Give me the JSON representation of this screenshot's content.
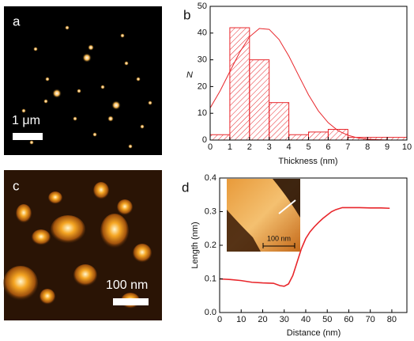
{
  "chart_data": [
    {
      "type": "histogram",
      "panel_label": "b",
      "x_label": "Thickness (nm)",
      "y_label": "N",
      "bins": [
        0,
        1,
        2,
        3,
        4,
        5,
        6,
        7,
        8,
        9,
        10
      ],
      "values": [
        2,
        42,
        30,
        14,
        2,
        3,
        4,
        1,
        1,
        1
      ],
      "color": "#e8262b",
      "fit": {
        "x": [
          0,
          0.5,
          1,
          1.5,
          2,
          2.5,
          3,
          3.5,
          4,
          4.5,
          5,
          5.5,
          6,
          6.5,
          7,
          7.5,
          8,
          9,
          10
        ],
        "values": [
          12.0,
          18.3,
          25.6,
          32.8,
          38.6,
          41.7,
          41.4,
          37.6,
          31.4,
          24.1,
          16.9,
          10.9,
          6.5,
          3.5,
          1.8,
          0.8,
          0.3,
          0.0,
          0.0
        ]
      },
      "xlim": [
        0,
        10
      ],
      "xticks": [
        0,
        1,
        2,
        3,
        4,
        5,
        6,
        7,
        8,
        9,
        10
      ],
      "ylim": [
        0,
        50
      ],
      "yticks": [
        0,
        10,
        20,
        30,
        40,
        50
      ]
    },
    {
      "type": "line",
      "panel_label": "d",
      "x_label": "Distance (nm)",
      "y_label": "Length (nm)",
      "inset_scale_bar": "100 nm",
      "x": [
        0,
        5,
        10,
        15,
        20,
        25,
        28,
        30,
        32,
        34,
        36,
        38,
        40,
        42,
        44,
        46,
        48,
        50,
        52,
        54,
        57,
        60,
        65,
        70,
        75,
        79
      ],
      "values": [
        0.1,
        0.098,
        0.095,
        0.09,
        0.088,
        0.087,
        0.08,
        0.078,
        0.085,
        0.11,
        0.15,
        0.19,
        0.22,
        0.24,
        0.255,
        0.268,
        0.28,
        0.29,
        0.3,
        0.306,
        0.312,
        0.312,
        0.312,
        0.311,
        0.311,
        0.31
      ],
      "color": "#e8262b",
      "xlim": [
        0,
        87
      ],
      "xticks": [
        0,
        10,
        20,
        30,
        40,
        50,
        60,
        70,
        80
      ],
      "ylim": [
        0,
        0.4
      ],
      "yticks": [
        {
          "value": 0,
          "label": "0.0"
        },
        0.1,
        0.2,
        0.3,
        0.4
      ]
    }
  ],
  "images": [
    {
      "panel_label": "a",
      "scale_bar": "1 μm"
    },
    {
      "panel_label": "c",
      "scale_bar": "100 nm"
    }
  ]
}
